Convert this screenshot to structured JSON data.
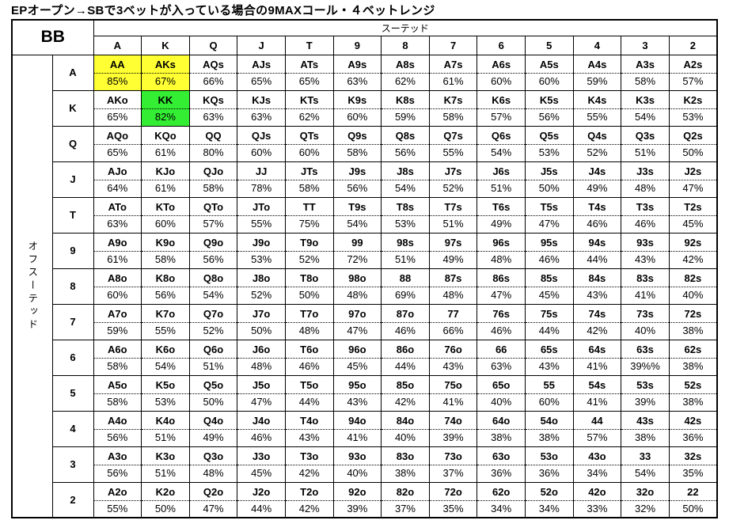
{
  "chart_data": {
    "type": "table",
    "title": "EPオープン→SBで3ベットが入っている場合の9MAXコール・４ベットレンジ",
    "corner_label": "BB",
    "col_group_label": "スーテッド",
    "row_group_label": "オフスーテッド",
    "columns": [
      "A",
      "K",
      "Q",
      "J",
      "T",
      "9",
      "8",
      "7",
      "6",
      "5",
      "4",
      "3",
      "2"
    ],
    "highlight_colors": {
      "yellow": "#ffff33",
      "green": "#33ee33"
    },
    "rows": [
      {
        "label": "A",
        "cells": [
          {
            "hand": "AA",
            "pct": "85%",
            "highlight": "yellow"
          },
          {
            "hand": "AKs",
            "pct": "67%",
            "highlight": "yellow"
          },
          {
            "hand": "AQs",
            "pct": "66%"
          },
          {
            "hand": "AJs",
            "pct": "65%"
          },
          {
            "hand": "ATs",
            "pct": "65%"
          },
          {
            "hand": "A9s",
            "pct": "63%"
          },
          {
            "hand": "A8s",
            "pct": "62%"
          },
          {
            "hand": "A7s",
            "pct": "61%"
          },
          {
            "hand": "A6s",
            "pct": "60%"
          },
          {
            "hand": "A5s",
            "pct": "60%"
          },
          {
            "hand": "A4s",
            "pct": "59%"
          },
          {
            "hand": "A3s",
            "pct": "58%"
          },
          {
            "hand": "A2s",
            "pct": "57%"
          }
        ]
      },
      {
        "label": "K",
        "cells": [
          {
            "hand": "AKo",
            "pct": "65%"
          },
          {
            "hand": "KK",
            "pct": "82%",
            "highlight": "green"
          },
          {
            "hand": "KQs",
            "pct": "63%"
          },
          {
            "hand": "KJs",
            "pct": "63%"
          },
          {
            "hand": "KTs",
            "pct": "62%"
          },
          {
            "hand": "K9s",
            "pct": "60%"
          },
          {
            "hand": "K8s",
            "pct": "59%"
          },
          {
            "hand": "K7s",
            "pct": "58%"
          },
          {
            "hand": "K6s",
            "pct": "57%"
          },
          {
            "hand": "K5s",
            "pct": "56%"
          },
          {
            "hand": "K4s",
            "pct": "55%"
          },
          {
            "hand": "K3s",
            "pct": "54%"
          },
          {
            "hand": "K2s",
            "pct": "53%"
          }
        ]
      },
      {
        "label": "Q",
        "cells": [
          {
            "hand": "AQo",
            "pct": "65%"
          },
          {
            "hand": "KQo",
            "pct": "61%"
          },
          {
            "hand": "QQ",
            "pct": "80%"
          },
          {
            "hand": "QJs",
            "pct": "60%"
          },
          {
            "hand": "QTs",
            "pct": "60%"
          },
          {
            "hand": "Q9s",
            "pct": "58%"
          },
          {
            "hand": "Q8s",
            "pct": "56%"
          },
          {
            "hand": "Q7s",
            "pct": "55%"
          },
          {
            "hand": "Q6s",
            "pct": "54%"
          },
          {
            "hand": "Q5s",
            "pct": "53%"
          },
          {
            "hand": "Q4s",
            "pct": "52%"
          },
          {
            "hand": "Q3s",
            "pct": "51%"
          },
          {
            "hand": "Q2s",
            "pct": "50%"
          }
        ]
      },
      {
        "label": "J",
        "cells": [
          {
            "hand": "AJo",
            "pct": "64%"
          },
          {
            "hand": "KJo",
            "pct": "61%"
          },
          {
            "hand": "QJo",
            "pct": "58%"
          },
          {
            "hand": "JJ",
            "pct": "78%"
          },
          {
            "hand": "JTs",
            "pct": "58%"
          },
          {
            "hand": "J9s",
            "pct": "56%"
          },
          {
            "hand": "J8s",
            "pct": "54%"
          },
          {
            "hand": "J7s",
            "pct": "52%"
          },
          {
            "hand": "J6s",
            "pct": "51%"
          },
          {
            "hand": "J5s",
            "pct": "50%"
          },
          {
            "hand": "J4s",
            "pct": "49%"
          },
          {
            "hand": "J3s",
            "pct": "48%"
          },
          {
            "hand": "J2s",
            "pct": "47%"
          }
        ]
      },
      {
        "label": "T",
        "cells": [
          {
            "hand": "ATo",
            "pct": "63%"
          },
          {
            "hand": "KTo",
            "pct": "60%"
          },
          {
            "hand": "QTo",
            "pct": "57%"
          },
          {
            "hand": "JTo",
            "pct": "55%"
          },
          {
            "hand": "TT",
            "pct": "75%"
          },
          {
            "hand": "T9s",
            "pct": "54%"
          },
          {
            "hand": "T8s",
            "pct": "53%"
          },
          {
            "hand": "T7s",
            "pct": "51%"
          },
          {
            "hand": "T6s",
            "pct": "49%"
          },
          {
            "hand": "T5s",
            "pct": "47%"
          },
          {
            "hand": "T4s",
            "pct": "46%"
          },
          {
            "hand": "T3s",
            "pct": "46%"
          },
          {
            "hand": "T2s",
            "pct": "45%"
          }
        ]
      },
      {
        "label": "9",
        "cells": [
          {
            "hand": "A9o",
            "pct": "61%"
          },
          {
            "hand": "K9o",
            "pct": "58%"
          },
          {
            "hand": "Q9o",
            "pct": "56%"
          },
          {
            "hand": "J9o",
            "pct": "53%"
          },
          {
            "hand": "T9o",
            "pct": "52%"
          },
          {
            "hand": "99",
            "pct": "72%"
          },
          {
            "hand": "98s",
            "pct": "51%"
          },
          {
            "hand": "97s",
            "pct": "49%"
          },
          {
            "hand": "96s",
            "pct": "48%"
          },
          {
            "hand": "95s",
            "pct": "46%"
          },
          {
            "hand": "94s",
            "pct": "44%"
          },
          {
            "hand": "93s",
            "pct": "43%"
          },
          {
            "hand": "92s",
            "pct": "42%"
          }
        ]
      },
      {
        "label": "8",
        "cells": [
          {
            "hand": "A8o",
            "pct": "60%"
          },
          {
            "hand": "K8o",
            "pct": "56%"
          },
          {
            "hand": "Q8o",
            "pct": "54%"
          },
          {
            "hand": "J8o",
            "pct": "52%"
          },
          {
            "hand": "T8o",
            "pct": "50%"
          },
          {
            "hand": "98o",
            "pct": "48%"
          },
          {
            "hand": "88",
            "pct": "69%"
          },
          {
            "hand": "87s",
            "pct": "48%"
          },
          {
            "hand": "86s",
            "pct": "47%"
          },
          {
            "hand": "85s",
            "pct": "45%"
          },
          {
            "hand": "84s",
            "pct": "43%"
          },
          {
            "hand": "83s",
            "pct": "41%"
          },
          {
            "hand": "82s",
            "pct": "40%"
          }
        ]
      },
      {
        "label": "7",
        "cells": [
          {
            "hand": "A7o",
            "pct": "59%"
          },
          {
            "hand": "K7o",
            "pct": "55%"
          },
          {
            "hand": "Q7o",
            "pct": "52%"
          },
          {
            "hand": "J7o",
            "pct": "50%"
          },
          {
            "hand": "T7o",
            "pct": "48%"
          },
          {
            "hand": "97o",
            "pct": "47%"
          },
          {
            "hand": "87o",
            "pct": "46%"
          },
          {
            "hand": "77",
            "pct": "66%"
          },
          {
            "hand": "76s",
            "pct": "46%"
          },
          {
            "hand": "75s",
            "pct": "44%"
          },
          {
            "hand": "74s",
            "pct": "42%"
          },
          {
            "hand": "73s",
            "pct": "40%"
          },
          {
            "hand": "72s",
            "pct": "38%"
          }
        ]
      },
      {
        "label": "6",
        "cells": [
          {
            "hand": "A6o",
            "pct": "58%"
          },
          {
            "hand": "K6o",
            "pct": "54%"
          },
          {
            "hand": "Q6o",
            "pct": "51%"
          },
          {
            "hand": "J6o",
            "pct": "48%"
          },
          {
            "hand": "T6o",
            "pct": "46%"
          },
          {
            "hand": "96o",
            "pct": "45%"
          },
          {
            "hand": "86o",
            "pct": "44%"
          },
          {
            "hand": "76o",
            "pct": "43%"
          },
          {
            "hand": "66",
            "pct": "63%"
          },
          {
            "hand": "65s",
            "pct": "43%"
          },
          {
            "hand": "64s",
            "pct": "41%"
          },
          {
            "hand": "63s",
            "pct": "39%%"
          },
          {
            "hand": "62s",
            "pct": "38%"
          }
        ]
      },
      {
        "label": "5",
        "cells": [
          {
            "hand": "A5o",
            "pct": "58%"
          },
          {
            "hand": "K5o",
            "pct": "53%"
          },
          {
            "hand": "Q5o",
            "pct": "50%"
          },
          {
            "hand": "J5o",
            "pct": "47%"
          },
          {
            "hand": "T5o",
            "pct": "44%"
          },
          {
            "hand": "95o",
            "pct": "43%"
          },
          {
            "hand": "85o",
            "pct": "42%"
          },
          {
            "hand": "75o",
            "pct": "41%"
          },
          {
            "hand": "65o",
            "pct": "40%"
          },
          {
            "hand": "55",
            "pct": "60%"
          },
          {
            "hand": "54s",
            "pct": "41%"
          },
          {
            "hand": "53s",
            "pct": "39%"
          },
          {
            "hand": "52s",
            "pct": "38%"
          }
        ]
      },
      {
        "label": "4",
        "cells": [
          {
            "hand": "A4o",
            "pct": "56%"
          },
          {
            "hand": "K4o",
            "pct": "51%"
          },
          {
            "hand": "Q4o",
            "pct": "49%"
          },
          {
            "hand": "J4o",
            "pct": "46%"
          },
          {
            "hand": "T4o",
            "pct": "43%"
          },
          {
            "hand": "94o",
            "pct": "41%"
          },
          {
            "hand": "84o",
            "pct": "40%"
          },
          {
            "hand": "74o",
            "pct": "39%"
          },
          {
            "hand": "64o",
            "pct": "38%"
          },
          {
            "hand": "54o",
            "pct": "38%"
          },
          {
            "hand": "44",
            "pct": "57%"
          },
          {
            "hand": "43s",
            "pct": "38%"
          },
          {
            "hand": "42s",
            "pct": "36%"
          }
        ]
      },
      {
        "label": "3",
        "cells": [
          {
            "hand": "A3o",
            "pct": "56%"
          },
          {
            "hand": "K3o",
            "pct": "51%"
          },
          {
            "hand": "Q3o",
            "pct": "48%"
          },
          {
            "hand": "J3o",
            "pct": "45%"
          },
          {
            "hand": "T3o",
            "pct": "42%"
          },
          {
            "hand": "93o",
            "pct": "40%"
          },
          {
            "hand": "83o",
            "pct": "38%"
          },
          {
            "hand": "73o",
            "pct": "37%"
          },
          {
            "hand": "63o",
            "pct": "36%"
          },
          {
            "hand": "53o",
            "pct": "36%"
          },
          {
            "hand": "43o",
            "pct": "34%"
          },
          {
            "hand": "33",
            "pct": "54%"
          },
          {
            "hand": "32s",
            "pct": "35%"
          }
        ]
      },
      {
        "label": "2",
        "cells": [
          {
            "hand": "A2o",
            "pct": "55%"
          },
          {
            "hand": "K2o",
            "pct": "50%"
          },
          {
            "hand": "Q2o",
            "pct": "47%"
          },
          {
            "hand": "J2o",
            "pct": "44%"
          },
          {
            "hand": "T2o",
            "pct": "42%"
          },
          {
            "hand": "92o",
            "pct": "39%"
          },
          {
            "hand": "82o",
            "pct": "37%"
          },
          {
            "hand": "72o",
            "pct": "35%"
          },
          {
            "hand": "62o",
            "pct": "34%"
          },
          {
            "hand": "52o",
            "pct": "34%"
          },
          {
            "hand": "42o",
            "pct": "33%"
          },
          {
            "hand": "32o",
            "pct": "32%"
          },
          {
            "hand": "22",
            "pct": "50%"
          }
        ]
      }
    ]
  }
}
